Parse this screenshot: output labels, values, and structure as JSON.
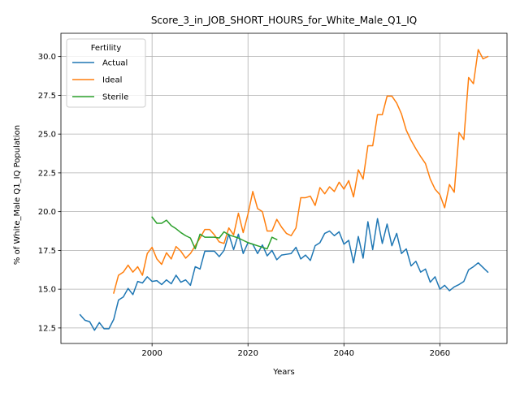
{
  "chart_data": {
    "type": "line",
    "title": "Score_3_in_JOB_SHORT_HOURS_for_White_Male_Q1_IQ",
    "xlabel": "Years",
    "ylabel": "% of White_Male Q1_IQ Population",
    "xlim": [
      1981,
      2074
    ],
    "ylim": [
      11.5,
      31.5
    ],
    "xticks": [
      2000,
      2020,
      2040,
      2060
    ],
    "xtick_labels": [
      "2000",
      "2020",
      "2040",
      "2060"
    ],
    "yticks": [
      12.5,
      15.0,
      17.5,
      20.0,
      22.5,
      25.0,
      27.5,
      30.0
    ],
    "ytick_labels": [
      "12.5",
      "15.0",
      "17.5",
      "20.0",
      "22.5",
      "25.0",
      "27.5",
      "30.0"
    ],
    "grid": true,
    "legend": {
      "title": "Fertility",
      "placement": "upper-left"
    },
    "series": [
      {
        "name": "Actual",
        "color": "#1f77b4",
        "x": [
          1985,
          1986,
          1987,
          1988,
          1989,
          1990,
          1991,
          1992,
          1993,
          1994,
          1995,
          1996,
          1997,
          1998,
          1999,
          2000,
          2001,
          2002,
          2003,
          2004,
          2005,
          2006,
          2007,
          2008,
          2009,
          2010,
          2011,
          2012,
          2013,
          2014,
          2015,
          2016,
          2017,
          2018,
          2019,
          2020,
          2021,
          2022,
          2023,
          2024,
          2025,
          2026,
          2027,
          2028,
          2029,
          2030,
          2031,
          2032,
          2033,
          2034,
          2035,
          2036,
          2037,
          2038,
          2039,
          2040,
          2041,
          2042,
          2043,
          2044,
          2045,
          2046,
          2047,
          2048,
          2049,
          2050,
          2051,
          2052,
          2053,
          2054,
          2055,
          2056,
          2057,
          2058,
          2059,
          2060,
          2061,
          2062,
          2063,
          2064,
          2065,
          2066,
          2067,
          2068,
          2069,
          2070
        ],
        "values": [
          13.35,
          13.0,
          12.9,
          12.35,
          12.85,
          12.45,
          12.45,
          13.05,
          14.3,
          14.5,
          15.05,
          14.65,
          15.5,
          15.4,
          15.8,
          15.5,
          15.55,
          15.3,
          15.6,
          15.35,
          15.9,
          15.45,
          15.6,
          15.25,
          16.45,
          16.3,
          17.45,
          17.45,
          17.45,
          17.1,
          17.5,
          18.55,
          17.55,
          18.55,
          17.3,
          18.0,
          17.9,
          17.3,
          17.85,
          17.15,
          17.5,
          16.9,
          17.2,
          17.25,
          17.3,
          17.7,
          16.95,
          17.2,
          16.85,
          17.8,
          18.0,
          18.6,
          18.75,
          18.45,
          18.7,
          17.9,
          18.15,
          16.7,
          18.4,
          17.0,
          19.35,
          17.55,
          19.55,
          17.95,
          19.2,
          17.8,
          18.6,
          17.3,
          17.6,
          16.5,
          16.8,
          16.1,
          16.3,
          15.45,
          15.8,
          15.0,
          15.25,
          14.9,
          15.15,
          15.3,
          15.5,
          16.25,
          16.45,
          16.7,
          16.4,
          16.1
        ]
      },
      {
        "name": "Ideal",
        "color": "#ff7f0e",
        "x": [
          1992,
          1993,
          1994,
          1995,
          1996,
          1997,
          1998,
          1999,
          2000,
          2001,
          2002,
          2003,
          2004,
          2005,
          2006,
          2007,
          2008,
          2009,
          2010,
          2011,
          2012,
          2013,
          2014,
          2015,
          2016,
          2017,
          2018,
          2019,
          2020,
          2021,
          2022,
          2023,
          2024,
          2025,
          2026,
          2027,
          2028,
          2029,
          2030,
          2031,
          2032,
          2033,
          2034,
          2035,
          2036,
          2037,
          2038,
          2039,
          2040,
          2041,
          2042,
          2043,
          2044,
          2045,
          2046,
          2047,
          2048,
          2049,
          2050,
          2051,
          2052,
          2053,
          2054,
          2055,
          2056,
          2057,
          2058,
          2059,
          2060,
          2061,
          2062,
          2063,
          2064,
          2065,
          2066,
          2067,
          2068,
          2069,
          2070
        ],
        "values": [
          14.75,
          15.9,
          16.1,
          16.55,
          16.1,
          16.45,
          15.9,
          17.3,
          17.7,
          16.95,
          16.6,
          17.35,
          16.95,
          17.75,
          17.45,
          17.0,
          17.3,
          17.8,
          18.3,
          18.85,
          18.85,
          18.5,
          18.05,
          17.95,
          18.95,
          18.5,
          19.9,
          18.65,
          19.85,
          21.3,
          20.2,
          20.0,
          18.75,
          18.75,
          19.5,
          19.0,
          18.6,
          18.45,
          18.95,
          20.9,
          20.9,
          21.0,
          20.4,
          21.55,
          21.15,
          21.6,
          21.3,
          21.9,
          21.45,
          22.0,
          20.95,
          22.7,
          22.1,
          24.25,
          24.25,
          26.25,
          26.25,
          27.45,
          27.45,
          27.0,
          26.3,
          25.25,
          24.6,
          24.05,
          23.55,
          23.1,
          22.1,
          21.45,
          21.1,
          20.25,
          21.75,
          21.25,
          25.1,
          24.65,
          28.65,
          28.25,
          30.45,
          29.85,
          30.0
        ]
      },
      {
        "name": "Sterile",
        "color": "#2ca02c",
        "x": [
          2000,
          2001,
          2002,
          2003,
          2004,
          2005,
          2006,
          2007,
          2008,
          2009,
          2010,
          2011,
          2012,
          2013,
          2014,
          2015,
          2016,
          2017,
          2018,
          2019,
          2020,
          2021,
          2022,
          2023,
          2024,
          2025,
          2026
        ],
        "values": [
          19.65,
          19.25,
          19.25,
          19.45,
          19.1,
          18.9,
          18.65,
          18.45,
          18.3,
          17.6,
          18.55,
          18.35,
          18.35,
          18.35,
          18.3,
          18.7,
          18.5,
          18.4,
          18.3,
          18.15,
          18.0,
          17.9,
          17.8,
          17.7,
          17.6,
          18.35,
          18.2
        ]
      }
    ]
  }
}
